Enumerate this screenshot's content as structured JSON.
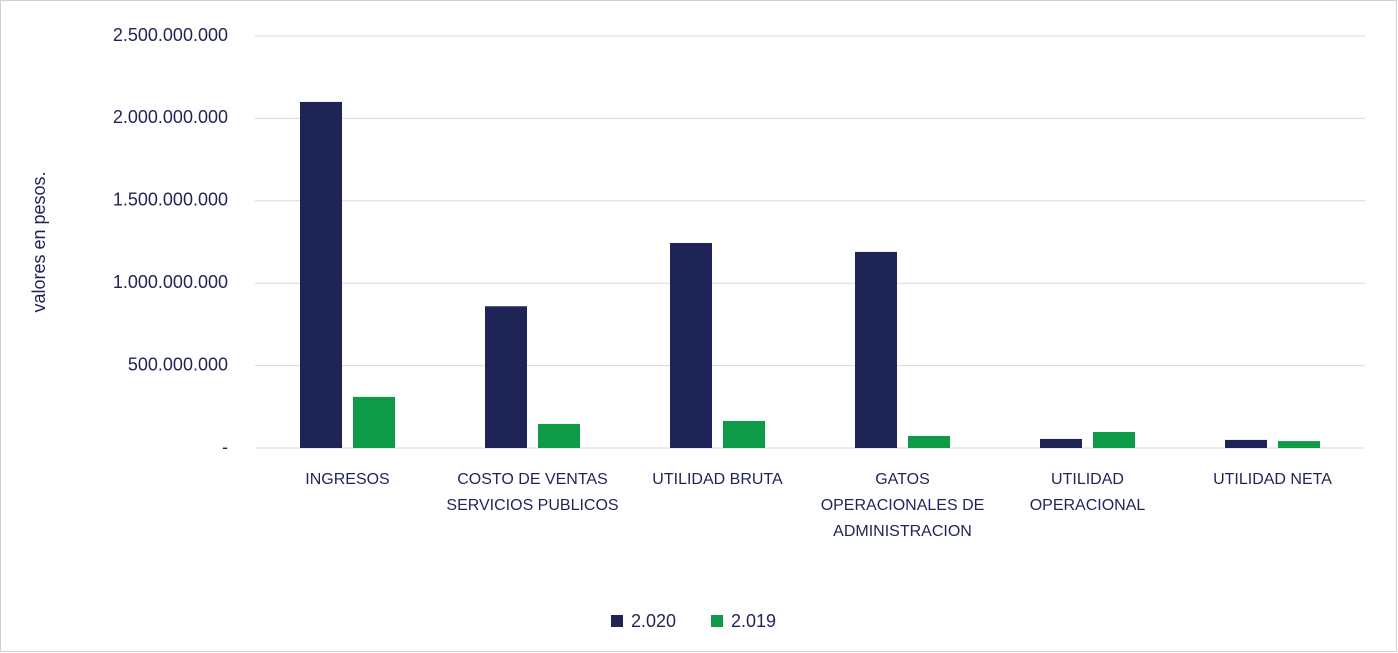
{
  "chart_data": {
    "type": "bar",
    "y_label": "valores en pesos.",
    "categories": [
      "INGRESOS",
      "COSTO DE VENTAS SERVICIOS PUBLICOS",
      "UTILIDAD BRUTA",
      "GATOS OPERACIONALES DE ADMINISTRACION",
      "UTILIDAD OPERACIONAL",
      "UTILIDAD NETA"
    ],
    "series": [
      {
        "name": "2.020",
        "color": "#1f2456",
        "values": [
          2100000000,
          860000000,
          1244000000,
          1190000000,
          55000000,
          49000000
        ]
      },
      {
        "name": "2.019",
        "color": "#0e9a47",
        "values": [
          310000000,
          146000000,
          164000000,
          73000000,
          97000000,
          42000000
        ]
      }
    ],
    "ylim": [
      0,
      2500000000
    ],
    "yticks": [
      {
        "value": 0,
        "label": "-"
      },
      {
        "value": 500000000,
        "label": "500.000.000"
      },
      {
        "value": 1000000000,
        "label": "1.000.000.000"
      },
      {
        "value": 1500000000,
        "label": "1.500.000.000"
      },
      {
        "value": 2000000000,
        "label": "2.000.000.000"
      },
      {
        "value": 2500000000,
        "label": "2.500.000.000"
      }
    ],
    "grid": true,
    "legend": "bottom"
  }
}
